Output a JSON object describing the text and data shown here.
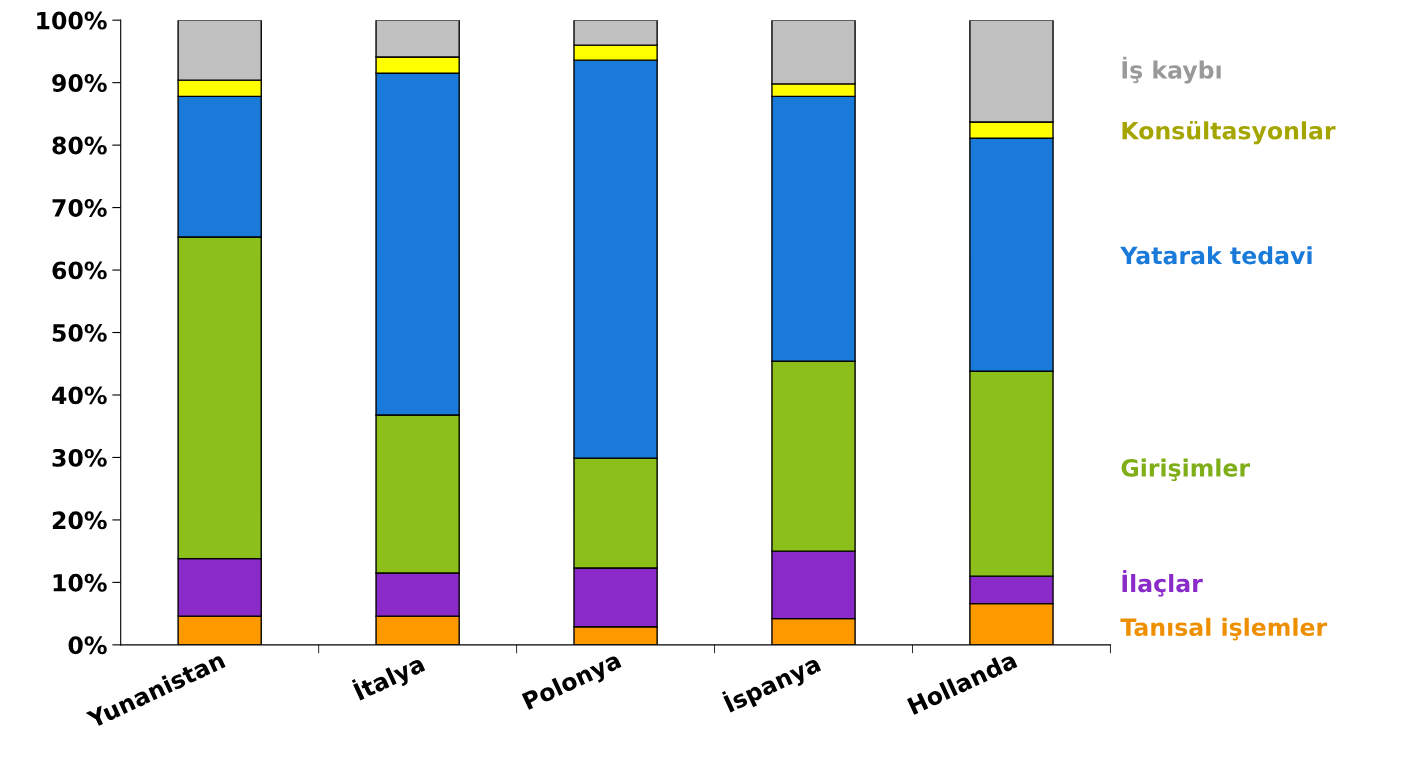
{
  "chart_data": {
    "type": "bar",
    "stacked": true,
    "categories": [
      "Yunanistan",
      "İtalya",
      "Polonya",
      "İspanya",
      "Hollanda"
    ],
    "series": [
      {
        "name": "Tanısal işlemler",
        "color": "#ff9900",
        "values": [
          4.6,
          4.6,
          2.9,
          4.2,
          6.6
        ]
      },
      {
        "name": "İlaçlar",
        "color": "#8a2bc9",
        "values": [
          9.2,
          6.9,
          9.4,
          10.8,
          4.4
        ]
      },
      {
        "name": "Girişimler",
        "color": "#8cbf1a",
        "values": [
          51.5,
          25.3,
          17.6,
          30.4,
          32.8
        ]
      },
      {
        "name": "Yatarak tedavi",
        "color": "#1a7ad9",
        "values": [
          22.5,
          54.7,
          63.7,
          42.4,
          37.3
        ]
      },
      {
        "name": "Konsültasyonlar",
        "color": "#ffff00",
        "values": [
          2.6,
          2.6,
          2.4,
          2.0,
          2.6
        ]
      },
      {
        "name": "İş kaybı",
        "color": "#c0c0c0",
        "values": [
          9.6,
          5.9,
          4.0,
          10.2,
          16.3
        ]
      }
    ],
    "ylim": [
      0,
      100
    ],
    "yticks": [
      {
        "value": 0,
        "label": "0%"
      },
      {
        "value": 10,
        "label": "10%"
      },
      {
        "value": 20,
        "label": "20%"
      },
      {
        "value": 30,
        "label": "30%"
      },
      {
        "value": 40,
        "label": "40%"
      },
      {
        "value": 50,
        "label": "50%"
      },
      {
        "value": 60,
        "label": "60%"
      },
      {
        "value": 70,
        "label": "70%"
      },
      {
        "value": 80,
        "label": "80%"
      },
      {
        "value": 90,
        "label": "90%"
      },
      {
        "value": 100,
        "label": "100%"
      }
    ],
    "grid": false,
    "legend": "right"
  }
}
